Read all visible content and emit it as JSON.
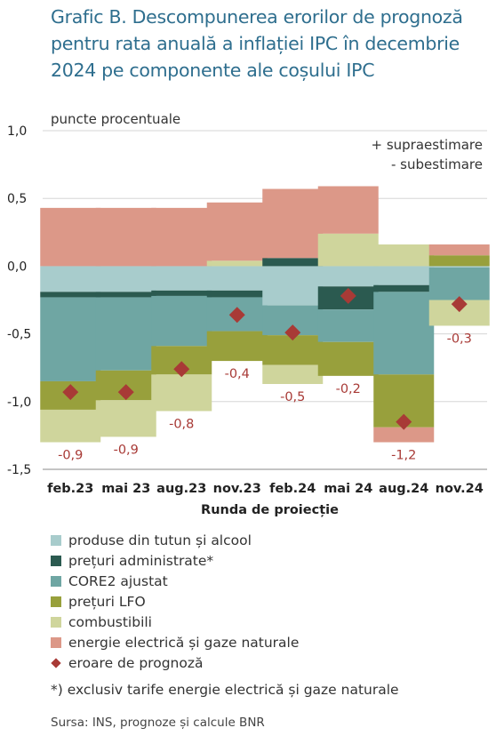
{
  "chart_data": {
    "type": "bar",
    "stacked": true,
    "title": "Grafic B. Descompunerea erorilor de prognoză pentru rata anuală a inflației IPC în decembrie 2024 pe componente ale coșului IPC",
    "ylabel": "puncte procentuale",
    "xlabel": "Runda de proiecție",
    "note_lines": [
      "+ supraestimare",
      "- subestimare"
    ],
    "ylim": [
      -1.5,
      1.0
    ],
    "yticks": [
      1.0,
      0.5,
      0.0,
      -0.5,
      -1.0,
      -1.5
    ],
    "ytick_labels": [
      "1,0",
      "0,5",
      "0,0",
      "-0,5",
      "-1,0",
      "-1,5"
    ],
    "grid": true,
    "legend_position": "bottom",
    "categories": [
      "feb.23",
      "mai 23",
      "aug.23",
      "nov.23",
      "feb.24",
      "mai 24",
      "aug.24",
      "nov.24"
    ],
    "series": [
      {
        "name": "produse din tutun și alcool",
        "color": "#a8cccc",
        "values": [
          -0.19,
          -0.19,
          -0.18,
          -0.18,
          -0.29,
          -0.15,
          -0.14,
          -0.01
        ]
      },
      {
        "name": "prețuri administrate*",
        "color": "#2b5a50",
        "values": [
          -0.04,
          -0.04,
          -0.04,
          -0.05,
          0.06,
          -0.17,
          -0.05,
          0.0
        ]
      },
      {
        "name": "CORE2 ajustat",
        "color": "#6fa6a3",
        "values": [
          -0.62,
          -0.54,
          -0.37,
          -0.25,
          -0.22,
          -0.24,
          -0.61,
          -0.24
        ]
      },
      {
        "name": "prețuri LFO",
        "color": "#98a03c",
        "values": [
          -0.21,
          -0.22,
          -0.21,
          -0.22,
          -0.22,
          -0.25,
          -0.39,
          0.08
        ]
      },
      {
        "name": "combustibili",
        "color": "#cfd59c",
        "values": [
          -0.24,
          -0.27,
          -0.27,
          0.04,
          -0.14,
          0.24,
          0.16,
          -0.19
        ]
      },
      {
        "name": "energie electrică și gaze naturale",
        "color": "#dc9888",
        "values": [
          0.43,
          0.43,
          0.43,
          0.43,
          0.51,
          0.35,
          -0.11,
          0.08
        ]
      }
    ],
    "error": {
      "name": "eroare de prognoză",
      "color": "#a83a36",
      "values": [
        -0.93,
        -0.93,
        -0.76,
        -0.36,
        -0.49,
        -0.22,
        -1.15,
        -0.28
      ],
      "labels": [
        "-0,9",
        "-0,9",
        "-0,8",
        "-0,4",
        "-0,5",
        "-0,2",
        "-1,2",
        "-0,3"
      ]
    }
  },
  "footnote": "*) exclusiv tarife energie electrică și gaze naturale",
  "source": "Sursa: INS, prognoze și calcule BNR"
}
